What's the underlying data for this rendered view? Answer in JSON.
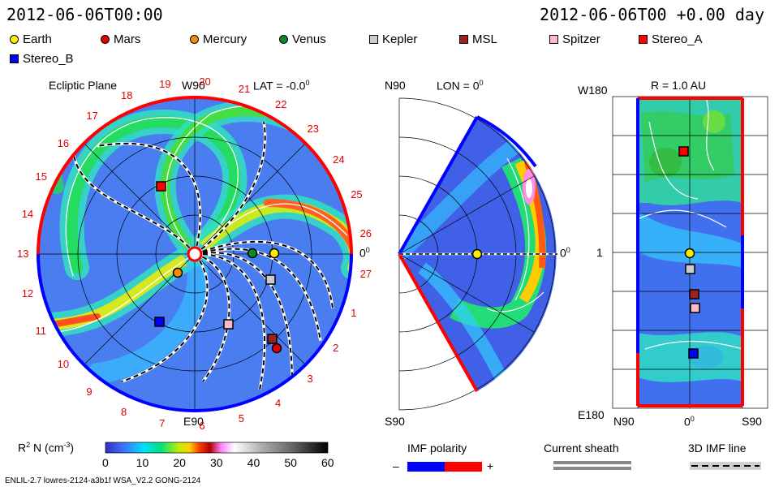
{
  "header": {
    "left_datetime": "2012-06-06T00:00",
    "right_datetime": "2012-06-06T00 +0.00 day"
  },
  "legend": [
    {
      "name": "Earth",
      "shape": "circle",
      "color": "#ffee00"
    },
    {
      "name": "Mars",
      "shape": "circle",
      "color": "#e00000"
    },
    {
      "name": "Mercury",
      "shape": "circle",
      "color": "#f0900a"
    },
    {
      "name": "Venus",
      "shape": "circle",
      "color": "#0a8a2a"
    },
    {
      "name": "Kepler",
      "shape": "square",
      "color": "#cccccc"
    },
    {
      "name": "MSL",
      "shape": "square",
      "color": "#a02020"
    },
    {
      "name": "Spitzer",
      "shape": "square",
      "color": "#ffb8c8"
    },
    {
      "name": "Stereo_A",
      "shape": "square",
      "color": "#ff0000"
    },
    {
      "name": "Stereo_B",
      "shape": "square",
      "color": "#0000ff"
    }
  ],
  "panels": {
    "ecliptic": {
      "title": "Ecliptic Plane",
      "top_label": "W90",
      "bottom_label": "E90",
      "lat_label": "LAT = -0.0",
      "lat_unit": "0",
      "right_label": "0",
      "right_unit": "0"
    },
    "meridional": {
      "top_label": "N90",
      "bottom_label": "S90",
      "lon_label": "LON = 0",
      "lon_unit": "0",
      "right_label": "0",
      "right_unit": "0"
    },
    "radial": {
      "title": "R = 1.0 AU",
      "top_left": "W180",
      "bottom_left": "E180",
      "mid_left": "1",
      "bottom_ticks": [
        "N90",
        "0",
        "S90"
      ],
      "bottom_mid_unit": "0"
    }
  },
  "carrington_numbers": [
    "19",
    "20",
    "21",
    "22",
    "23",
    "24",
    "25",
    "26",
    "27",
    "1",
    "2",
    "3",
    "4",
    "5",
    "6",
    "7",
    "8",
    "9",
    "10",
    "11",
    "12",
    "13",
    "14",
    "15",
    "16",
    "17",
    "18"
  ],
  "colorbar": {
    "label": "R",
    "label_sup": "2",
    "label_rest": " N (cm",
    "label_exp": "-3",
    "label_end": ")",
    "ticks": [
      "0",
      "10",
      "20",
      "30",
      "40",
      "50",
      "60"
    ]
  },
  "bottom_legend": {
    "imf_polarity": "IMF polarity",
    "minus": "–",
    "plus": "+",
    "current_sheath": "Current sheath",
    "imf_line": "3D IMF line",
    "colors": {
      "negative": "#0000ff",
      "positive": "#ff0000"
    }
  },
  "footer": "ENLIL-2.7 lowres-2124-a3b1f WSA_V2.2 GONG-2124",
  "chart_data": {
    "type": "heatmap",
    "title": "2012-06-06T00:00",
    "quantity": "R2 N (cm-3)",
    "colorbar_range": [
      0,
      60
    ],
    "bodies_ecliptic": [
      {
        "name": "Earth",
        "r": 1.0,
        "lon": 0
      },
      {
        "name": "Venus",
        "r": 0.72,
        "lon": 3
      },
      {
        "name": "Mercury",
        "r": 0.19,
        "lon": 230
      },
      {
        "name": "Mars",
        "r": 1.49,
        "lon": 300
      }
    ]
  }
}
